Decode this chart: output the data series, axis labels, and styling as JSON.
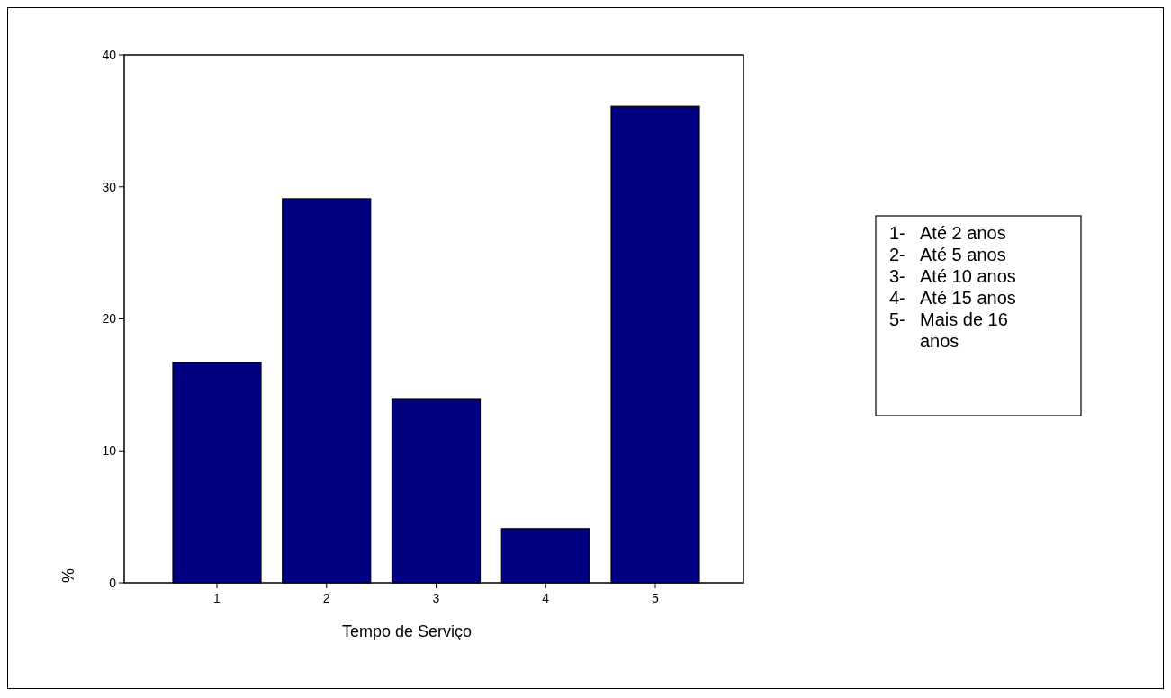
{
  "chart_data": {
    "type": "bar",
    "xlabel": "Tempo de Serviço",
    "ylabel": "%",
    "categories": [
      "1",
      "2",
      "3",
      "4",
      "5"
    ],
    "values": [
      16.7,
      29.1,
      13.9,
      4.1,
      36.1
    ],
    "color": "#000080",
    "ylim": [
      0,
      40
    ],
    "yticks": [
      0,
      10,
      20,
      30,
      40
    ],
    "grid": false,
    "annotations": [
      "1- Até 2 anos",
      "2- Até 5 anos",
      "3- Até 10 anos",
      "4- Até 15 anos",
      "5- Mais de 16 anos"
    ]
  }
}
